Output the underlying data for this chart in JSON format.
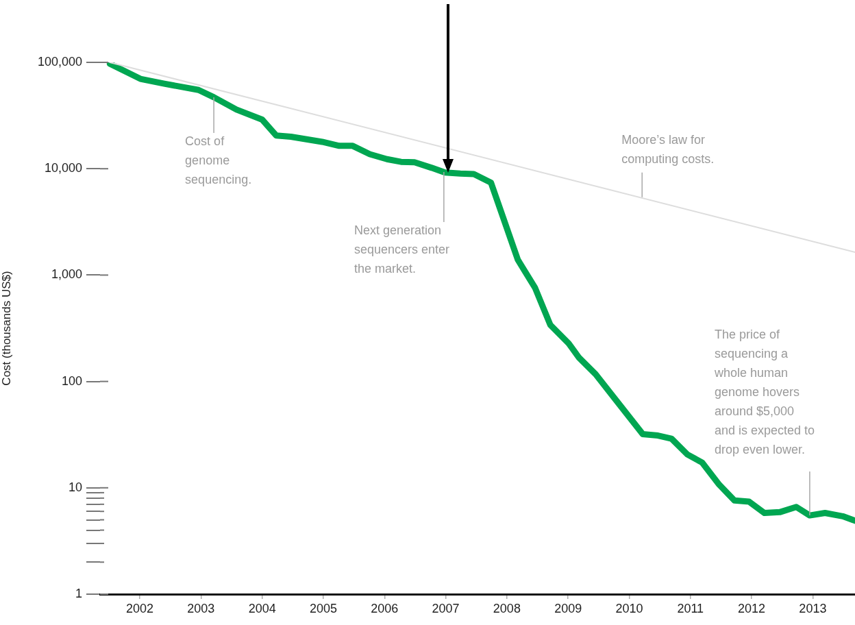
{
  "chart_data": {
    "type": "line",
    "ylabel": "Cost (thousands US$)",
    "log": "y",
    "grid": false,
    "legend": false,
    "marker": "none",
    "line_style": "solid",
    "xlim": [
      2001.35,
      2013.69
    ],
    "xticks": [
      2002,
      2003,
      2004,
      2005,
      2006,
      2007,
      2008,
      2009,
      2010,
      2011,
      2012,
      2013
    ],
    "ylim": [
      1,
      100000
    ],
    "yticks": [
      1,
      {
        "value": 2,
        "label": null
      },
      {
        "value": 3,
        "label": null
      },
      {
        "value": 4,
        "label": null
      },
      {
        "value": 5,
        "label": null
      },
      {
        "value": 6,
        "label": null
      },
      {
        "value": 7,
        "label": null
      },
      {
        "value": 8,
        "label": null
      },
      {
        "value": 9,
        "label": null
      },
      10,
      100,
      {
        "value": 1000,
        "label": "1,000"
      },
      {
        "value": 10000,
        "label": "10,000"
      },
      {
        "value": 100000,
        "label": "100,000"
      }
    ],
    "series": [
      {
        "color": "#00a651",
        "x": [
          2001.51,
          2002.01,
          2002.4,
          2002.96,
          2003.21,
          2003.58,
          2004.0,
          2004.23,
          2004.47,
          2004.98,
          2005.26,
          2005.48,
          2005.76,
          2006.04,
          2006.27,
          2006.49,
          2006.77,
          2006.99,
          2007.24,
          2007.46,
          2007.74,
          2008.18,
          2008.46,
          2008.71,
          2009.01,
          2009.18,
          2009.45,
          2009.79,
          2010.22,
          2010.47,
          2010.69,
          2010.95,
          2011.19,
          2011.47,
          2011.72,
          2011.96,
          2012.21,
          2012.46,
          2012.73,
          2012.95,
          2013.2,
          2013.49,
          2013.69
        ],
        "values": [
          97000,
          70000,
          63000,
          55000,
          47000,
          36000,
          29000,
          20500,
          20000,
          17900,
          16400,
          16400,
          13700,
          12300,
          11600,
          11500,
          10200,
          9200,
          9000,
          8900,
          7400,
          1390,
          760,
          340,
          228,
          167,
          117,
          66,
          32,
          31,
          29,
          20.6,
          17.3,
          10.7,
          7.6,
          7.4,
          5.8,
          5.9,
          6.6,
          5.5,
          5.8,
          5.4,
          4.9
        ]
      },
      {
        "color": "#dddddd",
        "x": [
          2001.51,
          2013.69
        ],
        "values": [
          100000,
          1640
        ]
      }
    ],
    "annotations": [
      {
        "text": "Cost of genome sequencing.",
        "x": 2003.21,
        "y": 47000
      },
      {
        "text": "Next generation sequencers enter the market.",
        "x": 2006.97,
        "y": 9300
      },
      {
        "text": "Moore’s law for computing costs.",
        "x": 2010.21,
        "y": 5400
      },
      {
        "text": "The price of sequencing a whole human genome hovers around $5,000 and is expected to drop even lower.",
        "x": 2012.95,
        "y": 5.5
      }
    ]
  }
}
